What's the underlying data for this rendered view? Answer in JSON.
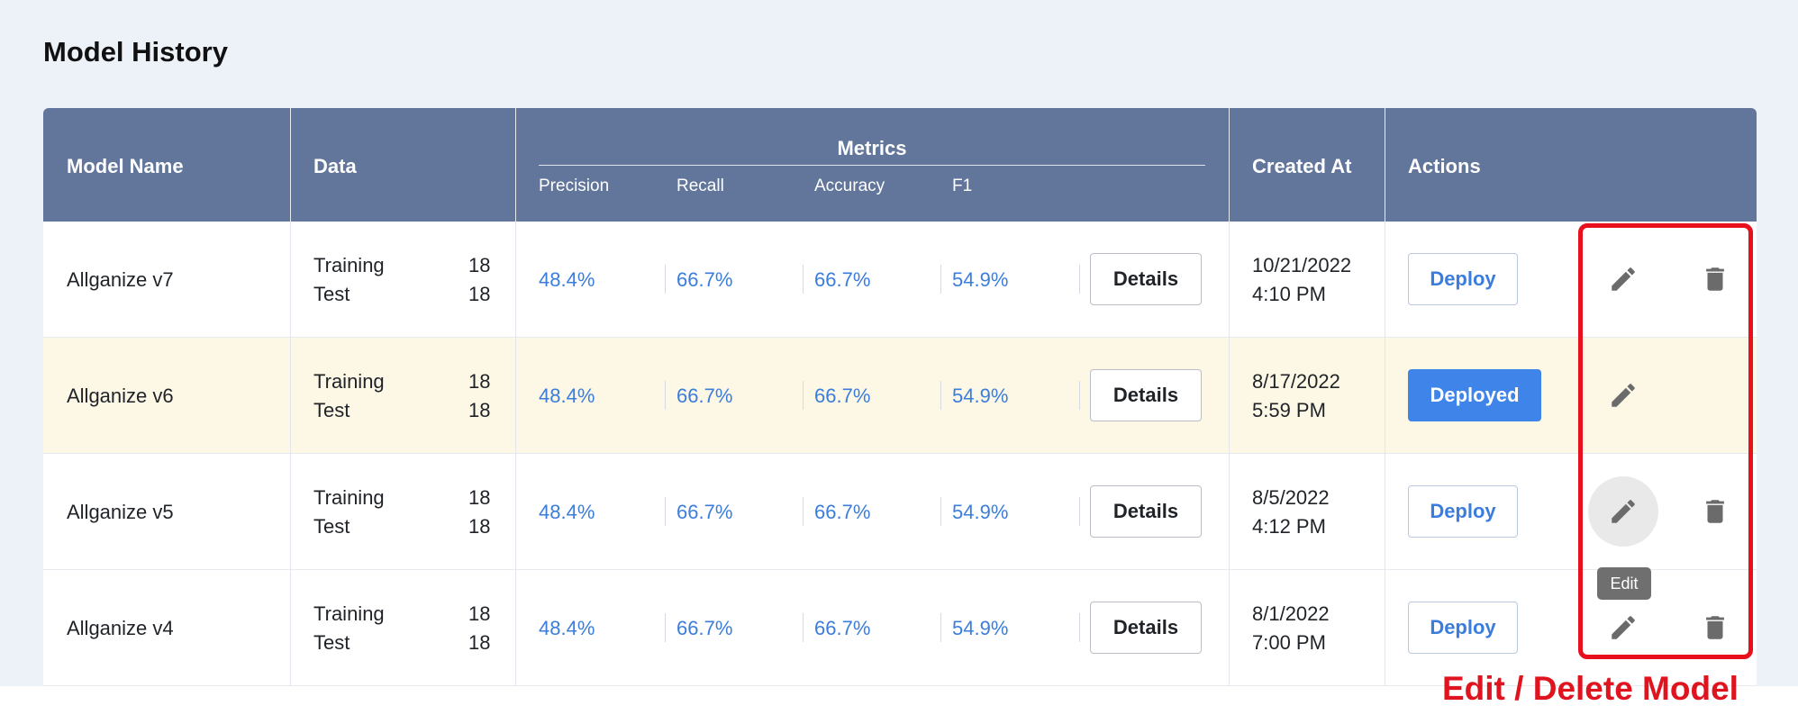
{
  "page": {
    "title": "Model History"
  },
  "table": {
    "headers": {
      "model_name": "Model Name",
      "data": "Data",
      "metrics": "Metrics",
      "metric_columns": [
        "Precision",
        "Recall",
        "Accuracy",
        "F1"
      ],
      "created_at": "Created At",
      "actions": "Actions"
    },
    "rows": [
      {
        "name": "Allganize v7",
        "training_label": "Training",
        "training_count": "18",
        "test_label": "Test",
        "test_count": "18",
        "precision": "48.4%",
        "recall": "66.7%",
        "accuracy": "66.7%",
        "f1": "54.9%",
        "details_label": "Details",
        "created_date": "10/21/2022",
        "created_time": "4:10 PM",
        "deploy_label": "Deploy",
        "deployed": false,
        "highlighted": false
      },
      {
        "name": "Allganize v6",
        "training_label": "Training",
        "training_count": "18",
        "test_label": "Test",
        "test_count": "18",
        "precision": "48.4%",
        "recall": "66.7%",
        "accuracy": "66.7%",
        "f1": "54.9%",
        "details_label": "Details",
        "created_date": "8/17/2022",
        "created_time": "5:59 PM",
        "deploy_label": "Deployed",
        "deployed": true,
        "highlighted": true
      },
      {
        "name": "Allganize v5",
        "training_label": "Training",
        "training_count": "18",
        "test_label": "Test",
        "test_count": "18",
        "precision": "48.4%",
        "recall": "66.7%",
        "accuracy": "66.7%",
        "f1": "54.9%",
        "details_label": "Details",
        "created_date": "8/5/2022",
        "created_time": "4:12 PM",
        "deploy_label": "Deploy",
        "deployed": false,
        "highlighted": false
      },
      {
        "name": "Allganize v4",
        "training_label": "Training",
        "training_count": "18",
        "test_label": "Test",
        "test_count": "18",
        "precision": "48.4%",
        "recall": "66.7%",
        "accuracy": "66.7%",
        "f1": "54.9%",
        "details_label": "Details",
        "created_date": "8/1/2022",
        "created_time": "7:00 PM",
        "deploy_label": "Deploy",
        "deployed": false,
        "highlighted": false
      }
    ]
  },
  "icons": {
    "edit": "pencil-icon",
    "delete": "trash-icon"
  },
  "tooltip": {
    "text": "Edit"
  },
  "annotation": {
    "text": "Edit / Delete Model",
    "color": "#e0141f"
  },
  "colors": {
    "header_bg": "#62769b",
    "accent": "#3b7ddd",
    "deployed_bg": "#3f84e8",
    "highlight_row": "#fdf8e6"
  }
}
